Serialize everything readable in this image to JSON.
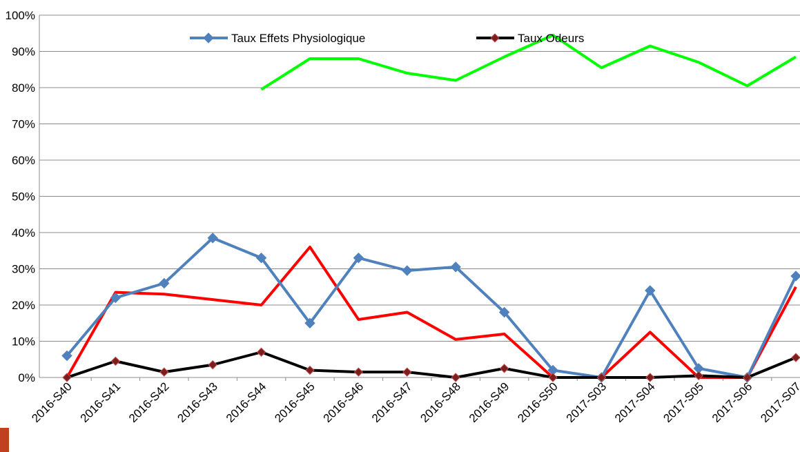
{
  "chart_data": {
    "type": "line",
    "categories": [
      "2016-S40",
      "2016-S41",
      "2016-S42",
      "2016-S43",
      "2016-S44",
      "2016-S45",
      "2016-S46",
      "2016-S47",
      "2016-S48",
      "2016-S49",
      "2016-S50",
      "2017-S03",
      "2017-S04",
      "2017-S05",
      "2017-S06",
      "2017-S07"
    ],
    "series": [
      {
        "name": "Taux Effets Physiologique",
        "color": "#4f81bd",
        "marker": "diamond",
        "values": [
          6,
          22,
          26,
          38.5,
          33,
          15,
          33,
          29.5,
          30.5,
          18,
          2,
          0,
          24,
          2.5,
          0,
          28
        ]
      },
      {
        "name": "Taux Odeurs",
        "color": "#000000",
        "marker": "diamond",
        "values": [
          0,
          4.5,
          1.5,
          3.5,
          7,
          2,
          1.5,
          1.5,
          0,
          2.5,
          0,
          0,
          0,
          0.5,
          0,
          5.5
        ]
      },
      {
        "color": "#ff0000",
        "values": [
          0,
          23.5,
          23,
          21.5,
          20,
          36,
          16,
          18,
          10.5,
          12,
          0,
          0,
          12.5,
          0,
          0,
          25
        ]
      },
      {
        "color": "#00ff00",
        "values": [
          null,
          null,
          null,
          null,
          79.5,
          88,
          88,
          84,
          82,
          88.5,
          94.5,
          85.5,
          91.5,
          87,
          80.5,
          88.5
        ]
      }
    ],
    "ylim": [
      0,
      100
    ],
    "yticks": [
      {
        "value": 0,
        "label": "0%"
      },
      {
        "value": 10,
        "label": "10%"
      },
      {
        "value": 20,
        "label": "20%"
      },
      {
        "value": 30,
        "label": "30%"
      },
      {
        "value": 40,
        "label": "40%"
      },
      {
        "value": 50,
        "label": "50%"
      },
      {
        "value": 60,
        "label": "60%"
      },
      {
        "value": 70,
        "label": "70%"
      },
      {
        "value": 80,
        "label": "80%"
      },
      {
        "value": 90,
        "label": "90%"
      },
      {
        "value": 100,
        "label": "100%"
      }
    ],
    "grid": true,
    "legend": "top"
  }
}
